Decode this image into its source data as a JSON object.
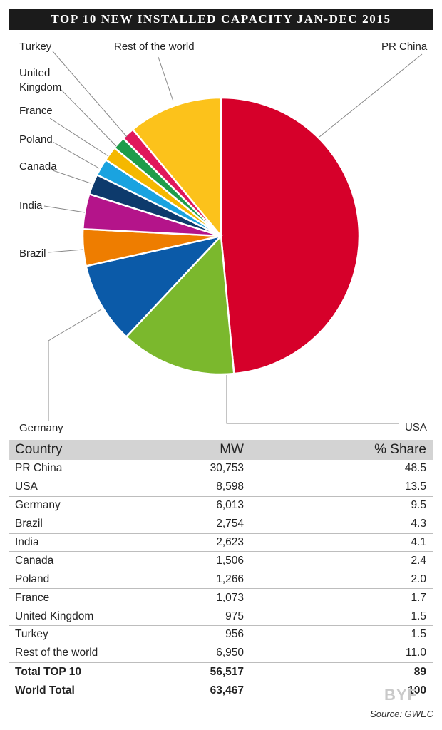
{
  "title": "TOP 10 NEW INSTALLED CAPACITY JAN-DEC 2015",
  "chart_data": {
    "type": "pie",
    "title": "TOP 10 NEW INSTALLED CAPACITY JAN-DEC 2015",
    "slices": [
      {
        "label": "PR China",
        "value": 48.5,
        "color": "#d6002a"
      },
      {
        "label": "USA",
        "value": 13.5,
        "color": "#7bb82d"
      },
      {
        "label": "Germany",
        "value": 9.5,
        "color": "#0b5aa8"
      },
      {
        "label": "Brazil",
        "value": 4.3,
        "color": "#ee7d00"
      },
      {
        "label": "India",
        "value": 4.1,
        "color": "#b4148a"
      },
      {
        "label": "Canada",
        "value": 2.4,
        "color": "#0d3a6c"
      },
      {
        "label": "Poland",
        "value": 2.0,
        "color": "#1aa3e0"
      },
      {
        "label": "France",
        "value": 1.7,
        "color": "#f5b800"
      },
      {
        "label": "United Kingdom",
        "value": 1.5,
        "color": "#1e9c4a"
      },
      {
        "label": "Turkey",
        "value": 1.5,
        "color": "#e0185c"
      },
      {
        "label": "Rest of the world",
        "value": 11.0,
        "color": "#fcc21b"
      }
    ]
  },
  "table": {
    "headers": {
      "country": "Country",
      "mw": "MW",
      "share": "% Share"
    },
    "rows": [
      {
        "country": "PR China",
        "mw": "30,753",
        "share": "48.5"
      },
      {
        "country": "USA",
        "mw": "8,598",
        "share": "13.5"
      },
      {
        "country": "Germany",
        "mw": "6,013",
        "share": "9.5"
      },
      {
        "country": "Brazil",
        "mw": "2,754",
        "share": "4.3"
      },
      {
        "country": "India",
        "mw": "2,623",
        "share": "4.1"
      },
      {
        "country": "Canada",
        "mw": "1,506",
        "share": "2.4"
      },
      {
        "country": "Poland",
        "mw": "1,266",
        "share": "2.0"
      },
      {
        "country": "France",
        "mw": "1,073",
        "share": "1.7"
      },
      {
        "country": "United Kingdom",
        "mw": "975",
        "share": "1.5"
      },
      {
        "country": "Turkey",
        "mw": "956",
        "share": "1.5"
      },
      {
        "country": "Rest of the world",
        "mw": "6,950",
        "share": "11.0"
      }
    ],
    "totals": [
      {
        "country": "Total TOP 10",
        "mw": "56,517",
        "share": "89"
      },
      {
        "country": "World Total",
        "mw": "63,467",
        "share": "100"
      }
    ]
  },
  "source": "Source: GWEC",
  "watermark": "BYF"
}
